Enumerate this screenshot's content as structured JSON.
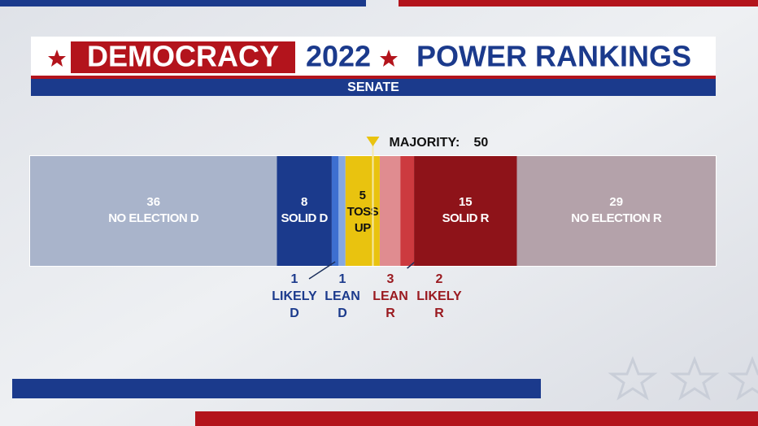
{
  "chart_data": {
    "type": "stacked_bar",
    "title_parts": [
      "DEMOCRACY",
      "2022",
      "POWER RANKINGS"
    ],
    "subtitle": "SENATE",
    "xlim": [
      0,
      100
    ],
    "majority": {
      "label": "MAJORITY:",
      "value": 50
    },
    "series": [
      {
        "name": [
          "NO ELECTION D"
        ],
        "values": [
          36
        ],
        "color": "#a9b4cb",
        "text_color": "#ffffff",
        "callout": false
      },
      {
        "name": [
          "SOLID D"
        ],
        "values": [
          8
        ],
        "color": "#1b3a8c",
        "text_color": "#ffffff",
        "callout": false
      },
      {
        "name": [
          "LIKELY",
          "D"
        ],
        "values": [
          1
        ],
        "color": "#3d6fd0",
        "text_color": "#1b3a8c",
        "callout": true
      },
      {
        "name": [
          "LEAN",
          "D"
        ],
        "values": [
          1
        ],
        "color": "#86a8e2",
        "text_color": "#1b3a8c",
        "callout": true
      },
      {
        "name": [
          "TOSS",
          "UP"
        ],
        "values": [
          5
        ],
        "color": "#e9c30f",
        "text_color": "#111111",
        "callout": false
      },
      {
        "name": [
          "LEAN",
          "R"
        ],
        "values": [
          3
        ],
        "color": "#e08c90",
        "text_color": "#9a1a20",
        "callout": true
      },
      {
        "name": [
          "LIKELY",
          "R"
        ],
        "values": [
          2
        ],
        "color": "#cc3a3f",
        "text_color": "#9a1a20",
        "callout": true
      },
      {
        "name": [
          "SOLID R"
        ],
        "values": [
          15
        ],
        "color": "#8e1319",
        "text_color": "#ffffff",
        "callout": false
      },
      {
        "name": [
          "NO ELECTION R"
        ],
        "values": [
          29
        ],
        "color": "#b4a2aa",
        "text_color": "#ffffff",
        "callout": false
      }
    ]
  }
}
